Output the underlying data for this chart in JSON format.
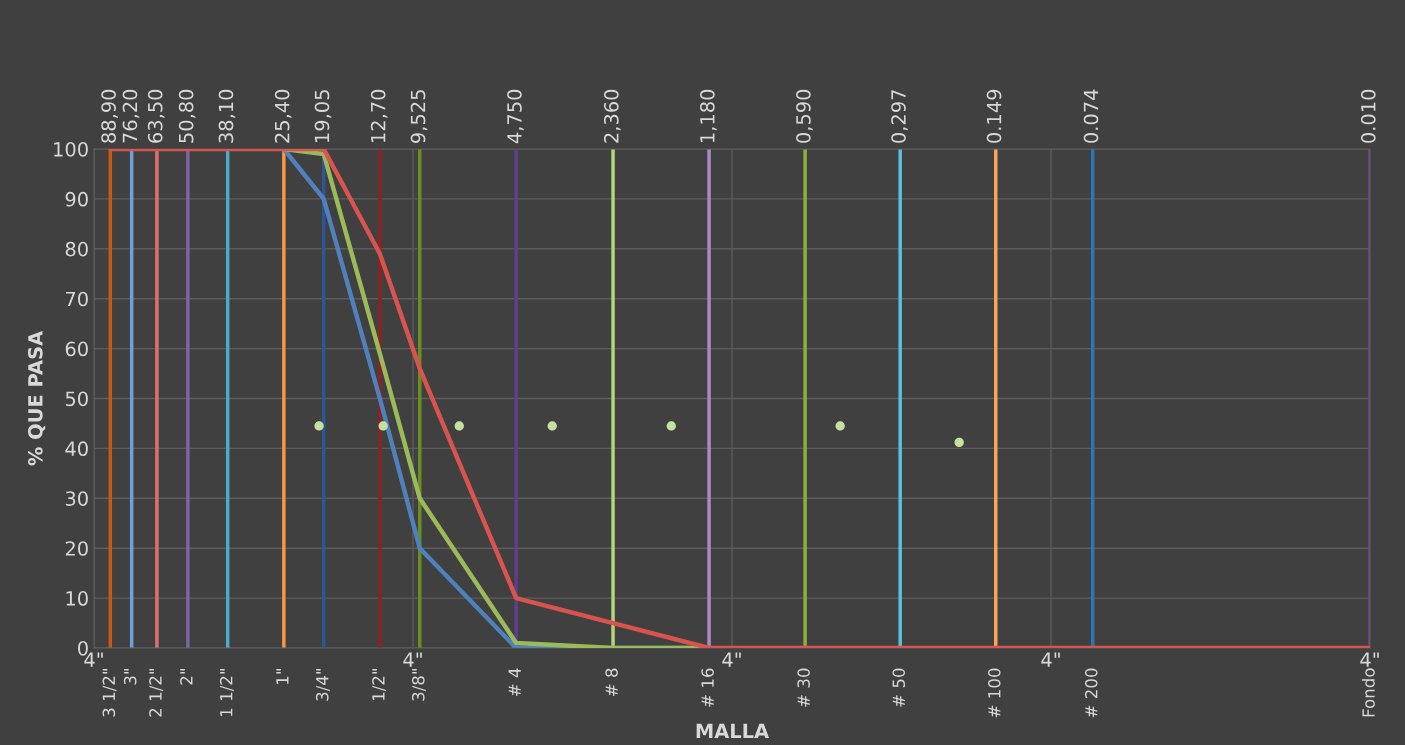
{
  "chart_data": {
    "type": "line",
    "xlabel": "MALLA",
    "ylabel": "% QUE PASA",
    "log": "x",
    "annotations": [
      "4\"",
      "4\"",
      "4\"",
      "4\"",
      "4\"",
      {
        "text": "3 1/2\"",
        "x": 88.9,
        "y": 0
      },
      {
        "text": "3\"",
        "x": 76.2,
        "y": 0
      },
      {
        "text": "2 1/2\"",
        "x": 63.5,
        "y": 0
      },
      {
        "text": "2\"",
        "x": 50.8,
        "y": 0
      },
      {
        "text": "1 1/2\"",
        "x": 38.1,
        "y": 0
      },
      {
        "text": "1\"",
        "x": 25.4,
        "y": 0
      },
      {
        "text": "3/4\"",
        "x": 19.05,
        "y": 0
      },
      {
        "text": "1/2\"",
        "x": 12.7,
        "y": 0
      },
      {
        "text": "3/8\"",
        "x": 9.525,
        "y": 0
      },
      {
        "text": "# 4",
        "x": 4.75,
        "y": 0
      },
      {
        "text": "# 8",
        "x": 2.36,
        "y": 0
      },
      {
        "text": "# 16",
        "x": 1.18,
        "y": 0
      },
      {
        "text": "# 30",
        "x": 0.59,
        "y": 0
      },
      {
        "text": "# 50",
        "x": 0.297,
        "y": 0
      },
      {
        "text": "# 100",
        "x": 0.149,
        "y": 0
      },
      {
        "text": "# 200",
        "x": 0.074,
        "y": 0
      },
      {
        "text": "Fondo",
        "x": 0.01,
        "y": 0
      }
    ],
    "xlim": [
      100,
      0.01
    ],
    "xticks": [
      {
        "value": 88.9,
        "label": "88,90"
      },
      {
        "value": 76.2,
        "label": "76,20"
      },
      {
        "value": 63.5,
        "label": "63,50"
      },
      {
        "value": 50.8,
        "label": "50,80"
      },
      {
        "value": 38.1,
        "label": "38,10"
      },
      {
        "value": 25.4,
        "label": "25,40"
      },
      {
        "value": 19.05,
        "label": "19,05"
      },
      {
        "value": 12.7,
        "label": "12,70"
      },
      {
        "value": 9.525,
        "label": "9,525"
      },
      {
        "value": 4.75,
        "label": "4,750"
      },
      {
        "value": 2.36,
        "label": "2,360"
      },
      {
        "value": 1.18,
        "label": "1,180"
      },
      {
        "value": 0.59,
        "label": "0,590"
      },
      {
        "value": 0.297,
        "label": "0,297"
      },
      {
        "value": 0.149,
        "label": "0.149"
      },
      {
        "value": 0.074,
        "label": "0.074"
      },
      {
        "value": 0.01,
        "label": "0.010"
      }
    ],
    "ylim": [
      0,
      100
    ],
    "yticks": [
      0,
      10,
      20,
      30,
      40,
      50,
      60,
      70,
      80,
      90,
      100
    ],
    "grid": true,
    "marker": "none",
    "line_style": "solid",
    "series": [
      {
        "color": "#4f81bd",
        "x": [
          25.4,
          19.05,
          12.7,
          9.525,
          4.75,
          2.36,
          1.18
        ],
        "values": [
          100,
          90,
          50,
          20,
          0,
          0,
          0
        ]
      },
      {
        "color": "#9bbb59",
        "x": [
          25.4,
          19.05,
          12.7,
          9.525,
          4.75,
          2.36,
          1.18
        ],
        "values": [
          100,
          99,
          59,
          30,
          1,
          0,
          0
        ]
      },
      {
        "color": "#d9534f",
        "x": [
          88.9,
          76.2,
          63.5,
          50.8,
          38.1,
          25.4,
          19.05,
          12.7,
          9.525,
          4.75,
          2.36,
          1.18,
          0.59,
          0.297,
          0.149,
          0.074,
          0.01
        ],
        "values": [
          100,
          100,
          100,
          100,
          100,
          100,
          100,
          79,
          56,
          10,
          5,
          0,
          0,
          0,
          0,
          0,
          0
        ]
      },
      {
        "type": "scatter",
        "marker": "circle",
        "color": "#c6e0a0",
        "x": [
          19.7,
          12.4,
          7.16,
          3.66,
          1.55,
          0.458,
          0.194
        ],
        "values": [
          44.5,
          44.5,
          44.5,
          44.5,
          44.5,
          44.5,
          41.2
        ]
      }
    ],
    "ref_lines": [
      {
        "axis": "x",
        "value": 88.9,
        "color": "#c55a11"
      },
      {
        "axis": "x",
        "value": 76.2,
        "color": "#6fa0dc"
      },
      {
        "axis": "x",
        "value": 63.5,
        "color": "#e07070"
      },
      {
        "axis": "x",
        "value": 50.8,
        "color": "#8064a2"
      },
      {
        "axis": "x",
        "value": 38.1,
        "color": "#4bacc6"
      },
      {
        "axis": "x",
        "value": 25.4,
        "color": "#f79646"
      },
      {
        "axis": "x",
        "value": 19.05,
        "color": "#2f5597"
      },
      {
        "axis": "x",
        "value": 12.7,
        "color": "#8b2323"
      },
      {
        "axis": "x",
        "value": 9.525,
        "color": "#6b8e23"
      },
      {
        "axis": "x",
        "value": 4.75,
        "color": "#5e3f8a"
      },
      {
        "axis": "x",
        "value": 2.36,
        "color": "#b3d67a"
      },
      {
        "axis": "x",
        "value": 1.18,
        "color": "#a88bc8"
      },
      {
        "axis": "x",
        "value": 0.59,
        "color": "#8db03c"
      },
      {
        "axis": "x",
        "value": 0.297,
        "color": "#5bc0de"
      },
      {
        "axis": "x",
        "value": 0.149,
        "color": "#f9a65a"
      },
      {
        "axis": "x",
        "value": 0.074,
        "color": "#2e75b6"
      },
      {
        "axis": "x",
        "value": 0.01,
        "color": "#6a4c93"
      }
    ]
  }
}
